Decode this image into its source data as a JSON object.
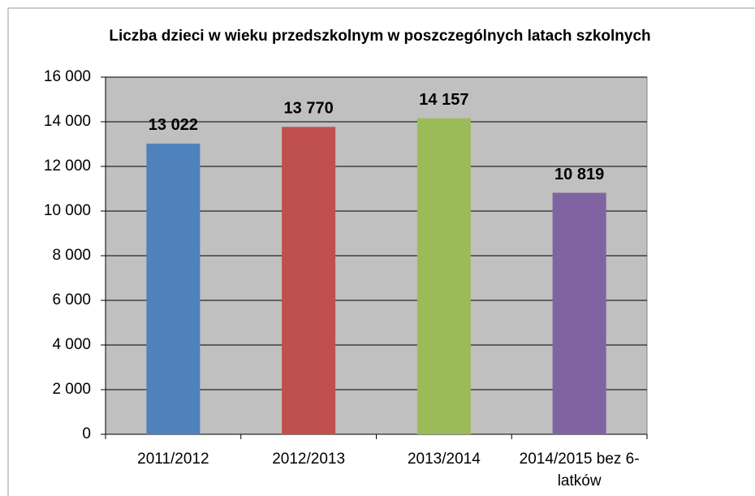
{
  "chart_data": {
    "type": "bar",
    "title": "Liczba dzieci w wieku przedszkolnym w poszczególnych latach szkolnych",
    "categories": [
      "2011/2012",
      "2012/2013",
      "2013/2014",
      "2014/2015 bez 6-latków"
    ],
    "values": [
      13022,
      13770,
      14157,
      10819
    ],
    "value_labels": [
      "13 022",
      "13 770",
      "14 157",
      "10 819"
    ],
    "colors": [
      "#4f81bd",
      "#c0504d",
      "#9bbb59",
      "#8064a2"
    ],
    "ylim": [
      0,
      16000
    ],
    "yticks": [
      0,
      {
        "value": 2000,
        "label": "2 000"
      },
      {
        "value": 4000,
        "label": "4 000"
      },
      {
        "value": 6000,
        "label": "6 000"
      },
      {
        "value": 8000,
        "label": "8 000"
      },
      {
        "value": 10000,
        "label": "10 000"
      },
      {
        "value": 12000,
        "label": "12 000"
      },
      {
        "value": 14000,
        "label": "14 000"
      },
      {
        "value": 16000,
        "label": "16 000"
      }
    ],
    "grid": true
  }
}
